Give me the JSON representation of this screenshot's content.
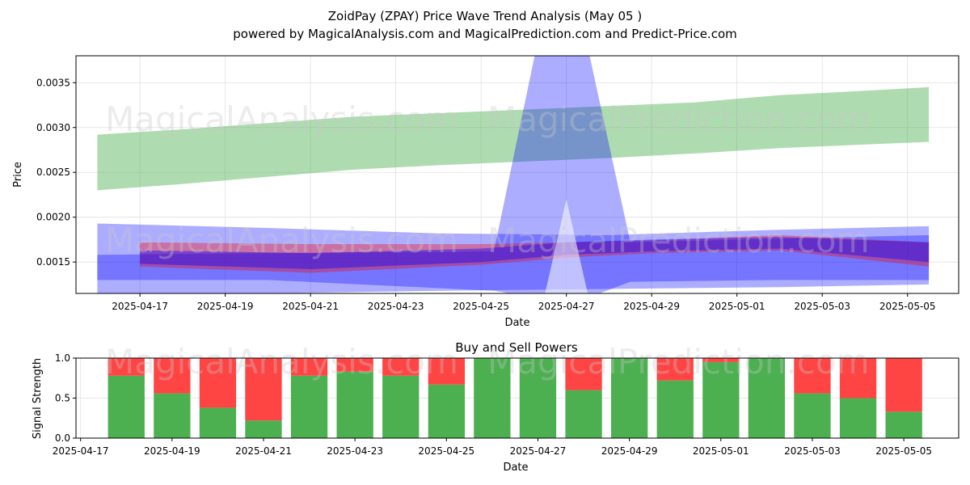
{
  "figure": {
    "title_line1": "ZoidPay (ZPAY) Price Wave Trend Analysis (May 05 )",
    "title_line2": "powered by MagicalAnalysis.com and MagicalPrediction.com and Predict-Price.com",
    "watermarks": [
      "MagicalAnalysis.com",
      "MagicalPrediction.com"
    ]
  },
  "colors": {
    "green_band": "#4caf50",
    "blue_band": "#0000ff",
    "red_band": "#ff0000",
    "buy_bar": "#4caf50",
    "sell_bar": "#ff4444",
    "grid": "#e0e0e0"
  },
  "chart_data": [
    {
      "type": "area",
      "title": "",
      "xlabel": "Date",
      "ylabel": "Price",
      "xlim": [
        "2025-04-15.5",
        "2025-05-06.2"
      ],
      "ylim": [
        0.00115,
        0.0038
      ],
      "x_ticks": [
        "2025-04-17",
        "2025-04-19",
        "2025-04-21",
        "2025-04-23",
        "2025-04-25",
        "2025-04-27",
        "2025-04-29",
        "2025-05-01",
        "2025-05-03",
        "2025-05-05"
      ],
      "y_ticks": [
        "0.0015",
        "0.0020",
        "0.0025",
        "0.0030",
        "0.0035"
      ],
      "grid": true,
      "series": [
        {
          "color": "green_band",
          "x": [
            "2025-04-16",
            "2025-04-18",
            "2025-04-20",
            "2025-04-22",
            "2025-04-24",
            "2025-04-26",
            "2025-04-28",
            "2025-04-30",
            "2025-05-02",
            "2025-05-04",
            "2025-05-05.5"
          ],
          "upper": [
            0.00292,
            0.00298,
            0.00305,
            0.00312,
            0.00316,
            0.0032,
            0.00324,
            0.00328,
            0.00336,
            0.00341,
            0.00345
          ],
          "lower": [
            0.0023,
            0.00237,
            0.00245,
            0.00253,
            0.00258,
            0.00262,
            0.00266,
            0.00271,
            0.00277,
            0.00281,
            0.00284
          ]
        },
        {
          "color": "blue_band",
          "x": [
            "2025-04-16",
            "2025-04-20",
            "2025-04-24",
            "2025-04-28",
            "2025-05-02",
            "2025-05-05.5"
          ],
          "upper": [
            0.00193,
            0.00188,
            0.00182,
            0.0018,
            0.00186,
            0.0019
          ],
          "lower": [
            0.0011,
            0.00115,
            0.00118,
            0.0012,
            0.00122,
            0.00125
          ]
        },
        {
          "color": "blue_band",
          "x": [
            "2025-04-16",
            "2025-04-20",
            "2025-04-25.3",
            "2025-04-26.3",
            "2025-04-27.5",
            "2025-04-28.5",
            "2025-05-02",
            "2025-05-05.5"
          ],
          "upper": [
            0.00158,
            0.0016,
            0.00162,
            0.0039,
            0.0039,
            0.00172,
            0.00176,
            0.0018
          ],
          "lower": [
            0.0013,
            0.0013,
            0.00118,
            0.0011,
            0.0011,
            0.00128,
            0.0013,
            0.0013
          ]
        },
        {
          "color": "red_band",
          "x": [
            "2025-04-17",
            "2025-04-21",
            "2025-04-25",
            "2025-04-27",
            "2025-04-29",
            "2025-05-02",
            "2025-05-05.5"
          ],
          "upper": [
            0.00172,
            0.0017,
            0.0017,
            0.00172,
            0.00174,
            0.0018,
            0.00172
          ],
          "lower": [
            0.00145,
            0.00138,
            0.00147,
            0.00155,
            0.0016,
            0.00163,
            0.00145
          ]
        },
        {
          "color": "blue_band",
          "x": [
            "2025-04-17",
            "2025-04-21",
            "2025-04-25",
            "2025-04-27",
            "2025-04-29",
            "2025-05-02",
            "2025-05-05.5"
          ],
          "upper": [
            0.00163,
            0.0016,
            0.00165,
            0.00172,
            0.00175,
            0.00178,
            0.00172
          ],
          "lower": [
            0.00148,
            0.00142,
            0.0015,
            0.00158,
            0.00162,
            0.00165,
            0.0015
          ]
        }
      ],
      "spike_triangle": {
        "x": [
          "2025-04-26.5",
          "2025-04-27",
          "2025-04-27.5"
        ],
        "y": [
          0.00115,
          0.0022,
          0.00115
        ]
      }
    },
    {
      "type": "bar",
      "title": "Buy and Sell Powers",
      "xlabel": "Date",
      "ylabel": "Signal Strength",
      "ylim": [
        0,
        1.0
      ],
      "xlim": [
        "2025-04-16.9",
        "2025-05-06.2"
      ],
      "x_ticks": [
        "2025-04-17",
        "2025-04-19",
        "2025-04-21",
        "2025-04-23",
        "2025-04-25",
        "2025-04-27",
        "2025-04-29",
        "2025-05-01",
        "2025-05-03",
        "2025-05-05"
      ],
      "y_ticks": [
        "0.0",
        "0.5",
        "1.0"
      ],
      "grid": true,
      "categories": [
        "2025-04-18",
        "2025-04-19",
        "2025-04-20",
        "2025-04-21",
        "2025-04-22",
        "2025-04-23",
        "2025-04-24",
        "2025-04-25",
        "2025-04-26",
        "2025-04-27",
        "2025-04-28",
        "2025-04-29",
        "2025-04-30",
        "2025-05-01",
        "2025-05-02",
        "2025-05-03",
        "2025-05-04",
        "2025-05-05"
      ],
      "series": [
        {
          "values": [
            0.78,
            0.56,
            0.38,
            0.22,
            0.78,
            0.83,
            0.78,
            0.67,
            1.0,
            1.0,
            0.6,
            1.0,
            0.72,
            0.95,
            1.0,
            0.56,
            0.5,
            0.33
          ]
        },
        {
          "values": [
            0.22,
            0.44,
            0.62,
            0.78,
            0.22,
            0.17,
            0.22,
            0.33,
            0.0,
            0.0,
            0.4,
            0.0,
            0.28,
            0.05,
            0.0,
            0.44,
            0.5,
            0.67
          ]
        }
      ]
    }
  ]
}
